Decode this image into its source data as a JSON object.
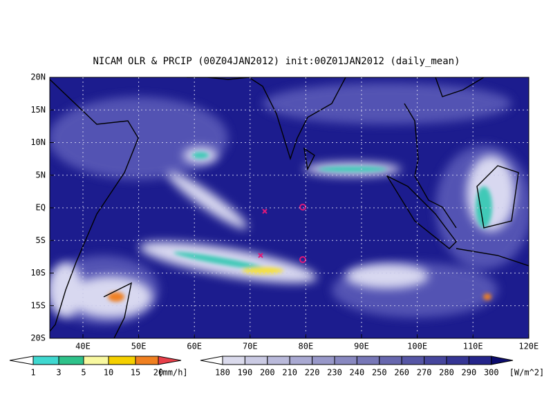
{
  "header": {
    "title": "NICAM OLR & PRCIP (00Z04JAN2012) init:00Z01JAN2012 (daily_mean)"
  },
  "map": {
    "lat_labels": [
      "20N",
      "15N",
      "10N",
      "5N",
      "EQ",
      "5S",
      "10S",
      "15S",
      "20S"
    ],
    "lon_labels": [
      "40E",
      "50E",
      "60E",
      "70E",
      "80E",
      "90E",
      "100E",
      "110E",
      "120E"
    ]
  },
  "precip_colorbar": {
    "labels": [
      "1",
      "3",
      "5",
      "10",
      "15",
      "20"
    ],
    "unit": "[mm/h]"
  },
  "olr_colorbar": {
    "labels": [
      "180",
      "190",
      "200",
      "210",
      "220",
      "230",
      "240",
      "250",
      "260",
      "270",
      "280",
      "290",
      "300"
    ],
    "unit": "[W/m^2]"
  }
}
